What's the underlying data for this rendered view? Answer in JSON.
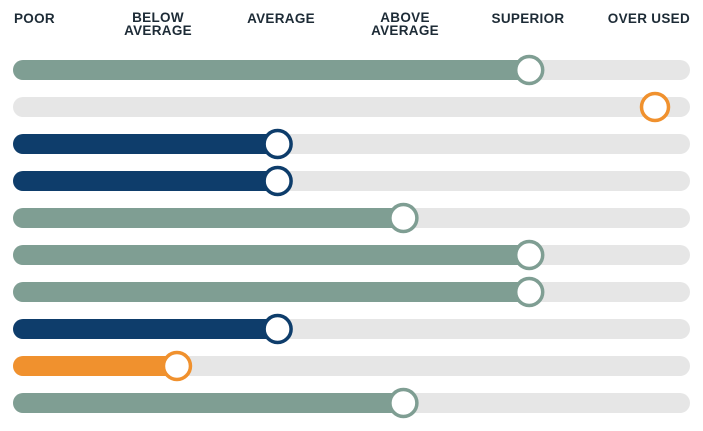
{
  "scale_labels": [
    "POOR",
    "BELOW\nAVERAGE",
    "AVERAGE",
    "ABOVE\nAVERAGE",
    "SUPERIOR",
    "OVER USED"
  ],
  "colors": {
    "track": "#e6e6e6",
    "sage": "#7f9e93",
    "navy": "#0e3d6b",
    "orange": "#f0912e"
  },
  "chart_data": {
    "type": "bar",
    "orientation": "horizontal",
    "scale": [
      "POOR",
      "BELOW AVERAGE",
      "AVERAGE",
      "ABOVE AVERAGE",
      "SUPERIOR",
      "OVER USED"
    ],
    "xlim": [
      0,
      5
    ],
    "bars": [
      {
        "value": 4.0,
        "color": "sage"
      },
      {
        "value": 5.0,
        "color": "orange",
        "fill": false
      },
      {
        "value": 2.0,
        "color": "navy"
      },
      {
        "value": 2.0,
        "color": "navy"
      },
      {
        "value": 3.0,
        "color": "sage"
      },
      {
        "value": 4.0,
        "color": "sage"
      },
      {
        "value": 4.0,
        "color": "sage"
      },
      {
        "value": 2.0,
        "color": "navy"
      },
      {
        "value": 1.2,
        "color": "orange"
      },
      {
        "value": 3.0,
        "color": "sage"
      }
    ]
  }
}
